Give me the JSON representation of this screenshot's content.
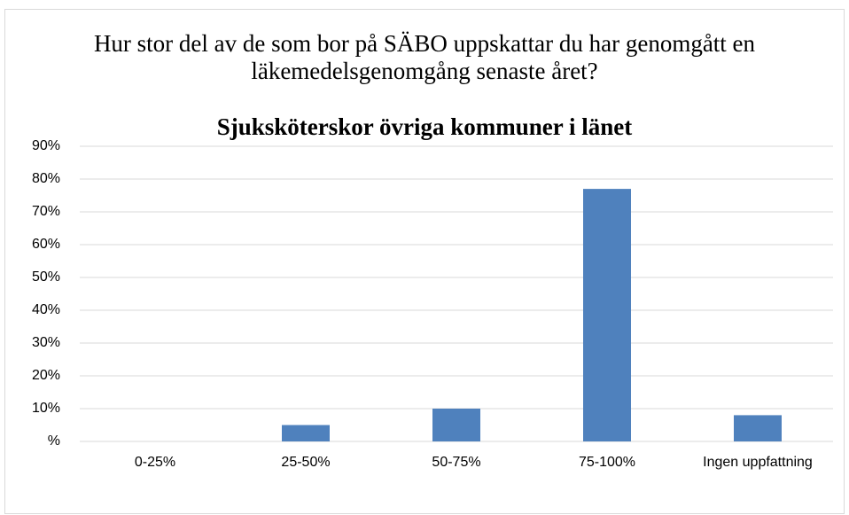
{
  "chart_data": {
    "type": "bar",
    "title": "Hur stor del av de som bor på SÄBO uppskattar du har genomgått en läkemedelsgenomgång senaste året?",
    "subtitle": "Sjuksköterskor övriga kommuner i länet",
    "categories": [
      "0-25%",
      "25-50%",
      "50-75%",
      "75-100%",
      "Ingen uppfattning"
    ],
    "values": [
      0,
      5,
      10,
      77,
      8
    ],
    "color": "#4f81bd",
    "ylim": [
      0,
      90
    ],
    "yticks": [
      {
        "value": 0,
        "label": "%"
      },
      {
        "value": 10,
        "label": "10%"
      },
      {
        "value": 20,
        "label": "20%"
      },
      {
        "value": 30,
        "label": "30%"
      },
      {
        "value": 40,
        "label": "40%"
      },
      {
        "value": 50,
        "label": "50%"
      },
      {
        "value": 60,
        "label": "60%"
      },
      {
        "value": 70,
        "label": "70%"
      },
      {
        "value": 80,
        "label": "80%"
      },
      {
        "value": 90,
        "label": "90%"
      }
    ],
    "grid": true
  }
}
